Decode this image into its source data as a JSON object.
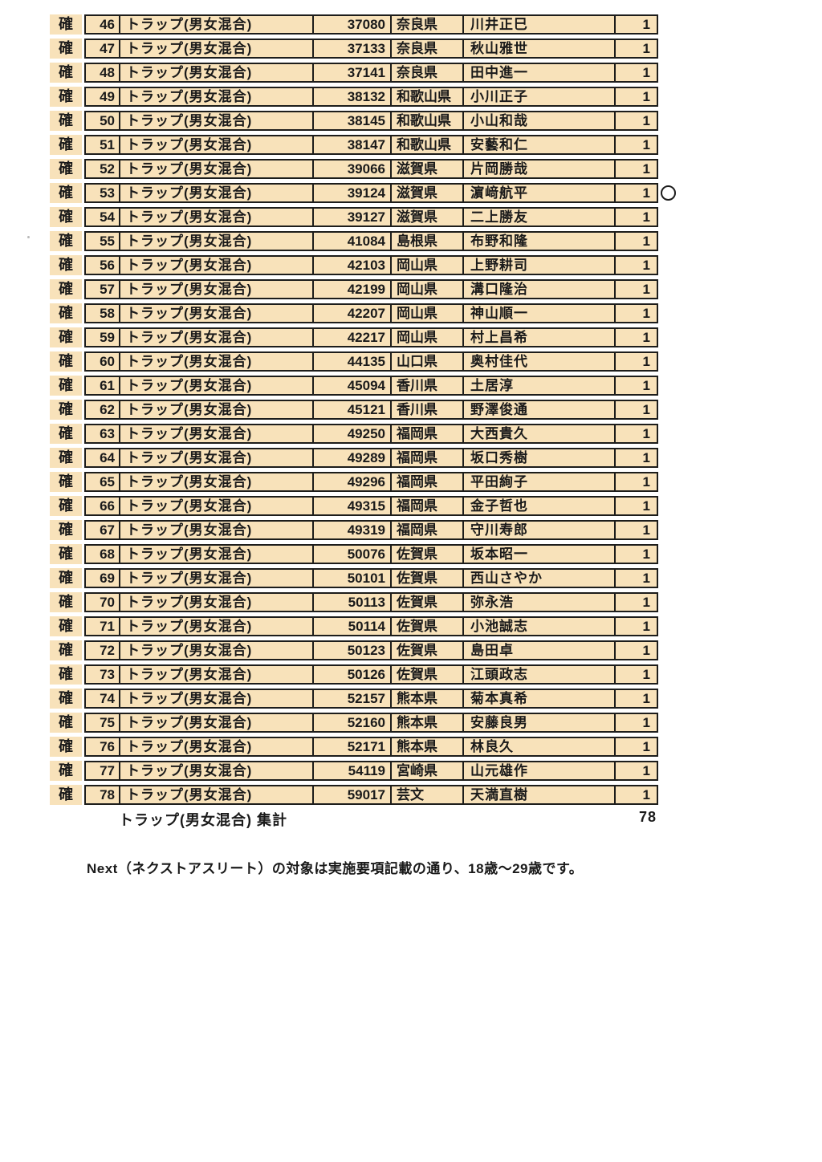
{
  "colors": {
    "row_fill": "#f8e2ba",
    "border": "#1d1d1b",
    "page_bg": "#ffffff"
  },
  "table": {
    "rows": [
      {
        "confirm": "確",
        "no": "46",
        "event": "トラップ(男女混合)",
        "id": "37080",
        "prefecture": "奈良県",
        "name": "川井正巳",
        "count": "1"
      },
      {
        "confirm": "確",
        "no": "47",
        "event": "トラップ(男女混合)",
        "id": "37133",
        "prefecture": "奈良県",
        "name": "秋山雅世",
        "count": "1"
      },
      {
        "confirm": "確",
        "no": "48",
        "event": "トラップ(男女混合)",
        "id": "37141",
        "prefecture": "奈良県",
        "name": "田中進一",
        "count": "1"
      },
      {
        "confirm": "確",
        "no": "49",
        "event": "トラップ(男女混合)",
        "id": "38132",
        "prefecture": "和歌山県",
        "name": "小川正子",
        "count": "1"
      },
      {
        "confirm": "確",
        "no": "50",
        "event": "トラップ(男女混合)",
        "id": "38145",
        "prefecture": "和歌山県",
        "name": "小山和哉",
        "count": "1"
      },
      {
        "confirm": "確",
        "no": "51",
        "event": "トラップ(男女混合)",
        "id": "38147",
        "prefecture": "和歌山県",
        "name": "安藝和仁",
        "count": "1"
      },
      {
        "confirm": "確",
        "no": "52",
        "event": "トラップ(男女混合)",
        "id": "39066",
        "prefecture": "滋賀県",
        "name": "片岡勝哉",
        "count": "1"
      },
      {
        "confirm": "確",
        "no": "53",
        "event": "トラップ(男女混合)",
        "id": "39124",
        "prefecture": "滋賀県",
        "name": "濵﨑航平",
        "count": "1",
        "marked": true
      },
      {
        "confirm": "確",
        "no": "54",
        "event": "トラップ(男女混合)",
        "id": "39127",
        "prefecture": "滋賀県",
        "name": "二上勝友",
        "count": "1"
      },
      {
        "confirm": "確",
        "no": "55",
        "event": "トラップ(男女混合)",
        "id": "41084",
        "prefecture": "島根県",
        "name": "布野和隆",
        "count": "1"
      },
      {
        "confirm": "確",
        "no": "56",
        "event": "トラップ(男女混合)",
        "id": "42103",
        "prefecture": "岡山県",
        "name": "上野耕司",
        "count": "1"
      },
      {
        "confirm": "確",
        "no": "57",
        "event": "トラップ(男女混合)",
        "id": "42199",
        "prefecture": "岡山県",
        "name": "溝口隆治",
        "count": "1"
      },
      {
        "confirm": "確",
        "no": "58",
        "event": "トラップ(男女混合)",
        "id": "42207",
        "prefecture": "岡山県",
        "name": "神山順一",
        "count": "1"
      },
      {
        "confirm": "確",
        "no": "59",
        "event": "トラップ(男女混合)",
        "id": "42217",
        "prefecture": "岡山県",
        "name": "村上昌希",
        "count": "1"
      },
      {
        "confirm": "確",
        "no": "60",
        "event": "トラップ(男女混合)",
        "id": "44135",
        "prefecture": "山口県",
        "name": "奥村佳代",
        "count": "1"
      },
      {
        "confirm": "確",
        "no": "61",
        "event": "トラップ(男女混合)",
        "id": "45094",
        "prefecture": "香川県",
        "name": "土居淳",
        "count": "1"
      },
      {
        "confirm": "確",
        "no": "62",
        "event": "トラップ(男女混合)",
        "id": "45121",
        "prefecture": "香川県",
        "name": "野澤俊通",
        "count": "1"
      },
      {
        "confirm": "確",
        "no": "63",
        "event": "トラップ(男女混合)",
        "id": "49250",
        "prefecture": "福岡県",
        "name": "大西貴久",
        "count": "1"
      },
      {
        "confirm": "確",
        "no": "64",
        "event": "トラップ(男女混合)",
        "id": "49289",
        "prefecture": "福岡県",
        "name": "坂口秀樹",
        "count": "1"
      },
      {
        "confirm": "確",
        "no": "65",
        "event": "トラップ(男女混合)",
        "id": "49296",
        "prefecture": "福岡県",
        "name": "平田絢子",
        "count": "1"
      },
      {
        "confirm": "確",
        "no": "66",
        "event": "トラップ(男女混合)",
        "id": "49315",
        "prefecture": "福岡県",
        "name": "金子哲也",
        "count": "1"
      },
      {
        "confirm": "確",
        "no": "67",
        "event": "トラップ(男女混合)",
        "id": "49319",
        "prefecture": "福岡県",
        "name": "守川寿郎",
        "count": "1"
      },
      {
        "confirm": "確",
        "no": "68",
        "event": "トラップ(男女混合)",
        "id": "50076",
        "prefecture": "佐賀県",
        "name": "坂本昭一",
        "count": "1"
      },
      {
        "confirm": "確",
        "no": "69",
        "event": "トラップ(男女混合)",
        "id": "50101",
        "prefecture": "佐賀県",
        "name": "西山さやか",
        "count": "1"
      },
      {
        "confirm": "確",
        "no": "70",
        "event": "トラップ(男女混合)",
        "id": "50113",
        "prefecture": "佐賀県",
        "name": "弥永浩",
        "count": "1"
      },
      {
        "confirm": "確",
        "no": "71",
        "event": "トラップ(男女混合)",
        "id": "50114",
        "prefecture": "佐賀県",
        "name": "小池誠志",
        "count": "1"
      },
      {
        "confirm": "確",
        "no": "72",
        "event": "トラップ(男女混合)",
        "id": "50123",
        "prefecture": "佐賀県",
        "name": "島田卓",
        "count": "1"
      },
      {
        "confirm": "確",
        "no": "73",
        "event": "トラップ(男女混合)",
        "id": "50126",
        "prefecture": "佐賀県",
        "name": "江頭政志",
        "count": "1"
      },
      {
        "confirm": "確",
        "no": "74",
        "event": "トラップ(男女混合)",
        "id": "52157",
        "prefecture": "熊本県",
        "name": "菊本真希",
        "count": "1"
      },
      {
        "confirm": "確",
        "no": "75",
        "event": "トラップ(男女混合)",
        "id": "52160",
        "prefecture": "熊本県",
        "name": "安藤良男",
        "count": "1"
      },
      {
        "confirm": "確",
        "no": "76",
        "event": "トラップ(男女混合)",
        "id": "52171",
        "prefecture": "熊本県",
        "name": "林良久",
        "count": "1"
      },
      {
        "confirm": "確",
        "no": "77",
        "event": "トラップ(男女混合)",
        "id": "54119",
        "prefecture": "宮崎県",
        "name": "山元雄作",
        "count": "1"
      },
      {
        "confirm": "確",
        "no": "78",
        "event": "トラップ(男女混合)",
        "id": "59017",
        "prefecture": "芸文",
        "name": "天満直樹",
        "count": "1"
      }
    ],
    "summary": {
      "label": "トラップ(男女混合) 集計",
      "total": "78"
    },
    "annotation": {
      "marked_row_no": "53",
      "mark": "○"
    }
  },
  "footer": {
    "note": "Next（ネクストアスリート）の対象は実施要項記載の通り、18歳～29歳です。"
  }
}
